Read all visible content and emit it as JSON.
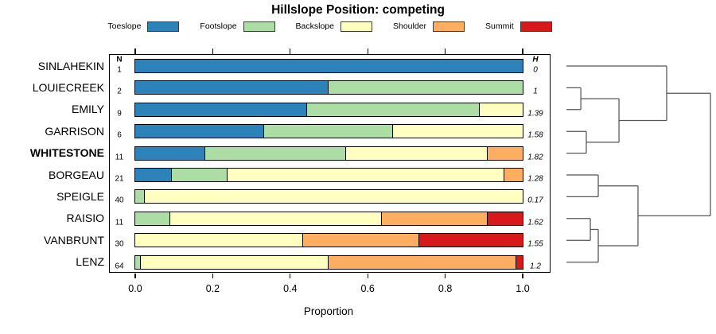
{
  "columns": {
    "n_header": "N",
    "h_header": "H"
  },
  "chart_data": {
    "type": "bar",
    "stacked": true,
    "orientation": "horizontal",
    "title": "Hillslope Position: competing",
    "legend_position": "top",
    "categories": [
      "Toeslope",
      "Footslope",
      "Backslope",
      "Shoulder",
      "Summit"
    ],
    "colors": [
      "#2B83BA",
      "#ABDDA4",
      "#FFFFBF",
      "#FDAE61",
      "#D7191C"
    ],
    "x_axis": {
      "label": "Proportion",
      "xlim": [
        0,
        1
      ],
      "ticks": [
        {
          "label": "0.0",
          "value": 0.0
        },
        {
          "label": "0.2",
          "value": 0.2
        },
        {
          "label": "0.4",
          "value": 0.4
        },
        {
          "label": "0.6",
          "value": 0.6
        },
        {
          "label": "0.8",
          "value": 0.8
        },
        {
          "label": "1.0",
          "value": 1.0
        }
      ]
    },
    "rows": [
      {
        "label": "SINLAHEKIN",
        "n": 1,
        "h": "0",
        "emphasis": false,
        "values": [
          1,
          0,
          0,
          0,
          0
        ]
      },
      {
        "label": "LOUIECREEK",
        "n": 2,
        "h": "1",
        "emphasis": false,
        "values": [
          0.5,
          0.5,
          0,
          0,
          0
        ]
      },
      {
        "label": "EMILY",
        "n": 9,
        "h": "1.39",
        "emphasis": false,
        "values": [
          0.4444,
          0.4444,
          0.1112,
          0,
          0
        ]
      },
      {
        "label": "GARRISON",
        "n": 6,
        "h": "1.58",
        "emphasis": false,
        "values": [
          0.3333,
          0.3334,
          0.3333,
          0,
          0
        ]
      },
      {
        "label": "WHITESTONE",
        "n": 11,
        "h": "1.82",
        "emphasis": true,
        "values": [
          0.1818,
          0.3636,
          0.3637,
          0.0909,
          0
        ]
      },
      {
        "label": "BORGEAU",
        "n": 21,
        "h": "1.28",
        "emphasis": false,
        "values": [
          0.0952,
          0.1429,
          0.7143,
          0.0476,
          0
        ]
      },
      {
        "label": "SPEIGLE",
        "n": 40,
        "h": "0.17",
        "emphasis": false,
        "values": [
          0,
          0.025,
          0.975,
          0,
          0
        ]
      },
      {
        "label": "RAISIO",
        "n": 11,
        "h": "1.62",
        "emphasis": false,
        "values": [
          0,
          0.0909,
          0.5455,
          0.2727,
          0.0909
        ]
      },
      {
        "label": "VANBRUNT",
        "n": 30,
        "h": "1.55",
        "emphasis": false,
        "values": [
          0,
          0,
          0.4333,
          0.3,
          0.2667
        ]
      },
      {
        "label": "LENZ",
        "n": 64,
        "h": "1.2",
        "emphasis": false,
        "values": [
          0,
          0.0156,
          0.4844,
          0.4844,
          0.0156
        ]
      }
    ],
    "dendrogram": {
      "h": 1.0,
      "children": [
        {
          "h": 0.696,
          "children": [
            {
              "leaf": 0
            },
            {
              "h": 0.365,
              "children": [
                {
                  "h": 0.1,
                  "children": [
                    {
                      "leaf": 1
                    },
                    {
                      "leaf": 2
                    }
                  ]
                },
                {
                  "h": 0.138,
                  "children": [
                    {
                      "leaf": 3
                    },
                    {
                      "leaf": 4
                    }
                  ]
                }
              ]
            }
          ]
        },
        {
          "h": 0.497,
          "children": [
            {
              "h": 0.221,
              "children": [
                {
                  "leaf": 5
                },
                {
                  "leaf": 6
                }
              ]
            },
            {
              "h": 0.221,
              "children": [
                {
                  "h": 0.166,
                  "children": [
                    {
                      "leaf": 7
                    },
                    {
                      "leaf": 8
                    }
                  ]
                },
                {
                  "leaf": 9
                }
              ]
            }
          ]
        }
      ]
    }
  }
}
